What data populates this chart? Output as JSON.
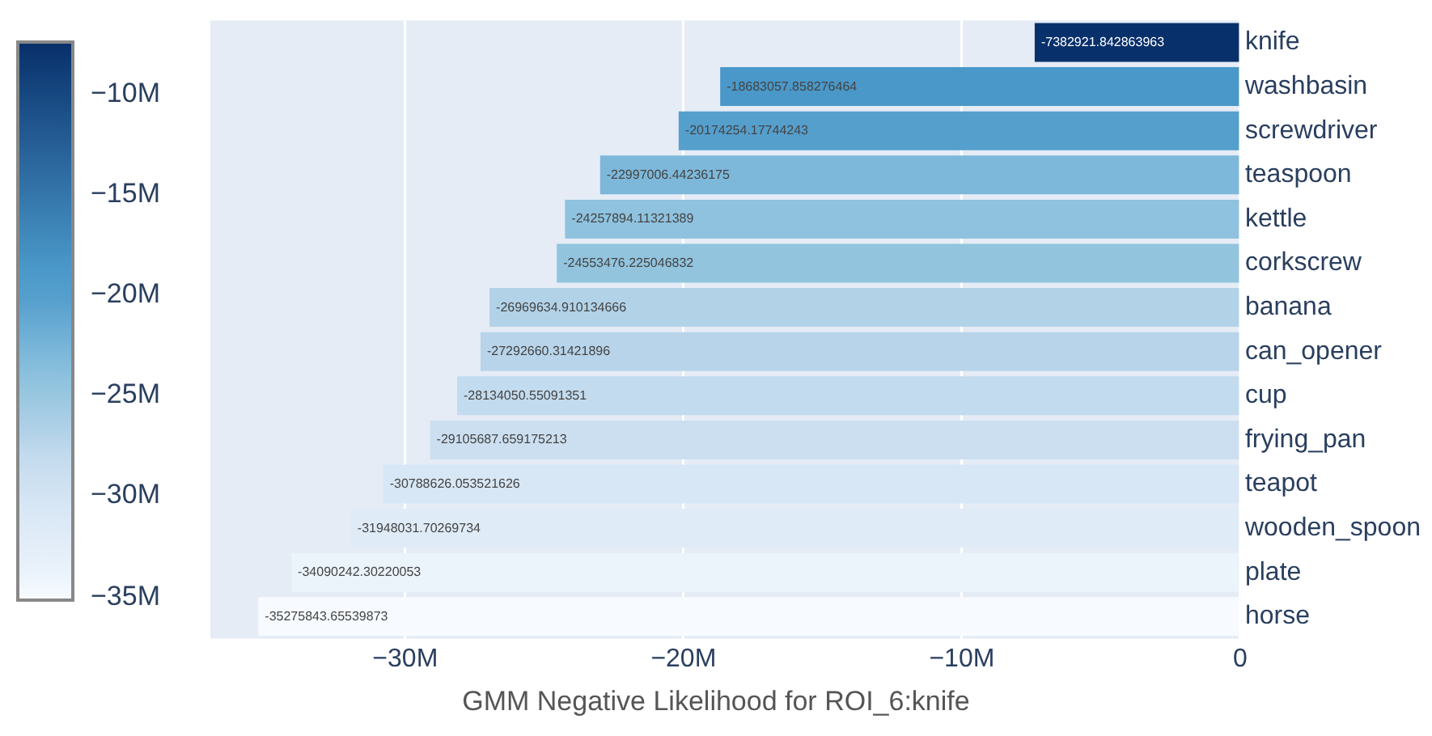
{
  "chart_data": {
    "type": "bar",
    "orientation": "horizontal",
    "xlabel": "GMM Negative Likelihood for ROI_6:knife",
    "categories": [
      "knife",
      "washbasin",
      "screwdriver",
      "teaspoon",
      "kettle",
      "corkscrew",
      "banana",
      "can_opener",
      "cup",
      "frying_pan",
      "teapot",
      "wooden_spoon",
      "plate",
      "horse"
    ],
    "values": [
      -7382921.842863963,
      -18683057.858276464,
      -20174254.17744243,
      -22997006.44236175,
      -24257894.11321389,
      -24553476.225046832,
      -26969634.910134666,
      -27292660.31421896,
      -28134050.55091351,
      -29105687.659175213,
      -30788626.053521626,
      -31948031.70269734,
      -34090242.30220053,
      -35275843.65539873
    ],
    "colors": [
      "#08306b",
      "#4a98c9",
      "#559fcd",
      "#7db8da",
      "#8fc2de",
      "#92c4de",
      "#b2d2e8",
      "#b7d4ea",
      "#c3dbee",
      "#cbdff0",
      "#d8e7f5",
      "#dfebf7",
      "#ebf3fb",
      "#f7fbff"
    ],
    "data_labels": true,
    "xlim": [
      -37000000,
      0
    ],
    "xticks": [
      {
        "value": -30000000,
        "label": "−30M"
      },
      {
        "value": -20000000,
        "label": "−20M"
      },
      {
        "value": -10000000,
        "label": "−10M"
      },
      0
    ],
    "clim": [
      -35275843.65539873,
      -7382921.842863963
    ],
    "cticks": [
      {
        "value": -10000000,
        "label": "−10M"
      },
      {
        "value": -15000000,
        "label": "−15M"
      },
      {
        "value": -20000000,
        "label": "−20M"
      },
      {
        "value": -25000000,
        "label": "−25M"
      },
      {
        "value": -30000000,
        "label": "−30M"
      },
      {
        "value": -35000000,
        "label": "−35M"
      }
    ],
    "grid": "x",
    "legend": false
  }
}
